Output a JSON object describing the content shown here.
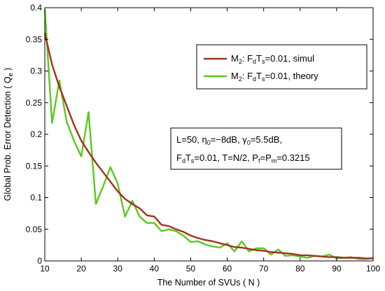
{
  "chart_data": {
    "type": "line",
    "xlabel": "The Number of SVUs ( N )",
    "ylabel": {
      "main": "Global Prob. Error Detection ( Q",
      "sub": "e",
      "tail": " )"
    },
    "xlim": [
      10,
      100
    ],
    "ylim": [
      0,
      0.4
    ],
    "xticks": [
      10,
      20,
      30,
      40,
      50,
      60,
      70,
      80,
      90,
      100
    ],
    "yticks": [
      0,
      0.05,
      0.1,
      0.15,
      0.2,
      0.25,
      0.3,
      0.35,
      0.4
    ],
    "ytick_labels": [
      "0",
      "0.05",
      "0.1",
      "0.15",
      "0.2",
      "0.25",
      "0.3",
      "0.35",
      "0.4"
    ],
    "grid": false,
    "legend_position": "top-right",
    "series": [
      {
        "name": "M2: FdTs=0.01, simul",
        "label_parts": {
          "a": "M",
          "a_sub": "2",
          "b": ": F",
          "b_sub": "d",
          "c": "T",
          "c_sub": "s",
          "d": "=0.01, simul"
        },
        "color": "#a0321e",
        "x": [
          10,
          12,
          14,
          16,
          18,
          20,
          22,
          24,
          26,
          28,
          30,
          32,
          34,
          36,
          38,
          40,
          42,
          44,
          46,
          48,
          50,
          52,
          54,
          56,
          58,
          60,
          62,
          64,
          66,
          68,
          70,
          72,
          74,
          76,
          78,
          80,
          82,
          84,
          86,
          88,
          90,
          92,
          94,
          96,
          98,
          100
        ],
        "y": [
          0.36,
          0.31,
          0.275,
          0.245,
          0.215,
          0.19,
          0.172,
          0.155,
          0.14,
          0.125,
          0.11,
          0.098,
          0.09,
          0.083,
          0.072,
          0.07,
          0.057,
          0.055,
          0.05,
          0.046,
          0.04,
          0.036,
          0.033,
          0.031,
          0.028,
          0.025,
          0.022,
          0.021,
          0.019,
          0.017,
          0.016,
          0.014,
          0.013,
          0.012,
          0.011,
          0.009,
          0.009,
          0.008,
          0.007,
          0.006,
          0.006,
          0.005,
          0.005,
          0.005,
          0.004,
          0.004
        ]
      },
      {
        "name": "M2: FdTs=0.01, theory",
        "label_parts": {
          "a": "M",
          "a_sub": "2",
          "b": ": F",
          "b_sub": "d",
          "c": "T",
          "c_sub": "s",
          "d": "=0.01, theory"
        },
        "color": "#5ac81e",
        "x": [
          10,
          12,
          14,
          16,
          18,
          20,
          22,
          24,
          26,
          28,
          30,
          32,
          34,
          36,
          38,
          40,
          42,
          44,
          46,
          48,
          50,
          52,
          54,
          56,
          58,
          60,
          62,
          64,
          66,
          68,
          70,
          72,
          74,
          76,
          78,
          80,
          82,
          84,
          86,
          88,
          90,
          92,
          94,
          96,
          98,
          100
        ],
        "y": [
          0.398,
          0.218,
          0.285,
          0.22,
          0.19,
          0.165,
          0.235,
          0.09,
          0.118,
          0.148,
          0.122,
          0.07,
          0.095,
          0.07,
          0.06,
          0.06,
          0.047,
          0.05,
          0.047,
          0.04,
          0.03,
          0.031,
          0.026,
          0.023,
          0.021,
          0.028,
          0.015,
          0.031,
          0.015,
          0.02,
          0.02,
          0.01,
          0.018,
          0.008,
          0.009,
          0.007,
          0.005,
          0.008,
          0.007,
          0.01,
          0.004,
          0.005,
          0.006,
          0.003,
          0.003,
          0.005
        ]
      }
    ],
    "annotation": {
      "line1": {
        "a": "L=50, η",
        "a_sub": "0",
        "b": "=−8dB, γ",
        "b_sub": "0",
        "c": "=5.5dB,"
      },
      "line2": {
        "a": "F",
        "a_sub": "d",
        "b": "T",
        "b_sub": "s",
        "c": "=0.01, T=N/2, P",
        "c_sub": "f",
        "d": "=P",
        "d_sub": "m",
        "e": "=0.3215"
      }
    }
  }
}
